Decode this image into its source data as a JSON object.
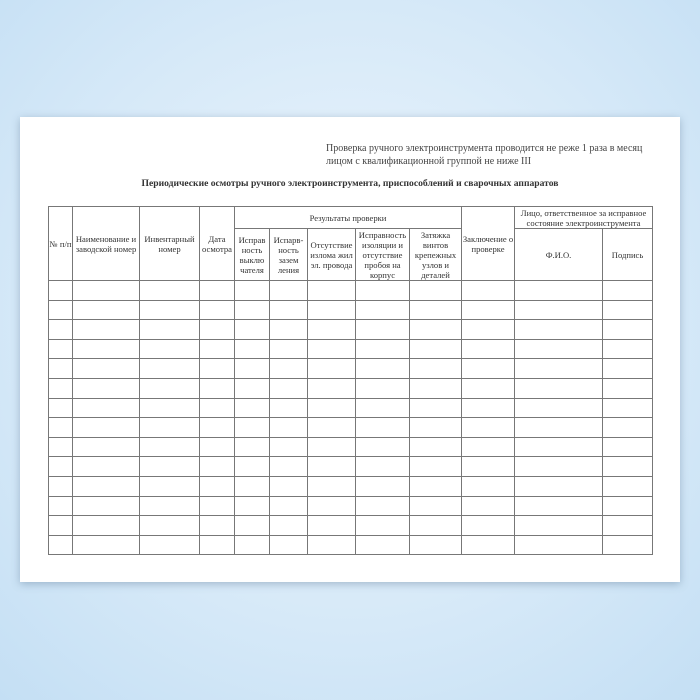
{
  "note": [
    "Проверка ручного электроинструмента проводится не реже 1 раза в месяц",
    "лицом с квалификационной группой не ниже III"
  ],
  "title": "Периодические осмотры ручного электроинструмента, приспособлений и сварочных аппаратов",
  "headers": {
    "num": "№ п/п",
    "name": "Наименование и заводской номер",
    "inv": "Инвентарный номер",
    "date": "Дата осмотра",
    "results": "Результаты проверки",
    "r1": "Исправ ность выклю чателя",
    "r2": "Испарв-ность зазем ления",
    "r3": "Отсутствие излома жил эл. провода",
    "r4": "Исправность изоляции и отсутствие пробоя на корпус",
    "r5": "Затяжка винтов крепежных узлов и деталей",
    "concl": "Заключение о проверке",
    "resp": "Лицо, ответственное за исправное состояние электроинструмента",
    "fio": "Ф.И.О.",
    "sign": "Подпись"
  }
}
